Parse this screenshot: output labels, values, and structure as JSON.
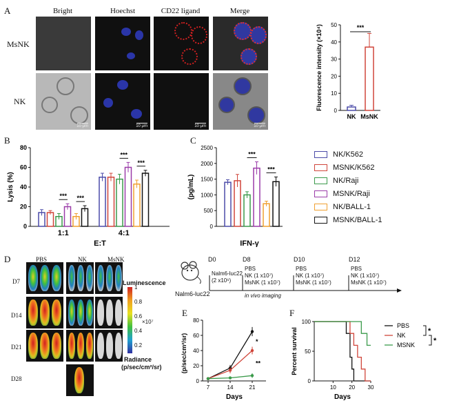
{
  "panels": {
    "a": "A",
    "b": "B",
    "c": "C",
    "d": "D",
    "e": "E",
    "f": "F"
  },
  "panel_a": {
    "columns": [
      "Bright",
      "Hoechst",
      "CD22 ligand",
      "Merge"
    ],
    "rows": [
      "MsNK",
      "NK"
    ],
    "scale_bar": "10 μm"
  },
  "chart_data": [
    {
      "id": "a_bar",
      "type": "bar",
      "categories": [
        "NK",
        "MsNK"
      ],
      "values": [
        2,
        37
      ],
      "errors": [
        1,
        8
      ],
      "colors": [
        "#4a4aa8",
        "#d0453a"
      ],
      "ylabel": "Fluorescence intensity (×10⁴)",
      "ylim": [
        0,
        50
      ],
      "yticks": [
        0,
        10,
        20,
        30,
        40,
        50
      ],
      "significance": "***"
    },
    {
      "id": "b_bar",
      "type": "bar",
      "categories": [
        "1:1",
        "4:1"
      ],
      "xlabel": "E:T",
      "ylabel": "Lysis (%)",
      "ylim": [
        0,
        80
      ],
      "yticks": [
        0,
        20,
        40,
        60,
        80
      ],
      "series": [
        {
          "name": "NK/K562",
          "values": [
            14,
            50
          ],
          "errors": [
            3,
            4
          ]
        },
        {
          "name": "MSNK/K562",
          "values": [
            14,
            50
          ],
          "errors": [
            2,
            4
          ]
        },
        {
          "name": "NK/Raji",
          "values": [
            10,
            48
          ],
          "errors": [
            3,
            5
          ]
        },
        {
          "name": "MSNK/Raji",
          "values": [
            20,
            60
          ],
          "errors": [
            3,
            5
          ]
        },
        {
          "name": "NK/BALL-1",
          "values": [
            10,
            43
          ],
          "errors": [
            3,
            4
          ]
        },
        {
          "name": "MSNK/BALL-1",
          "values": [
            18,
            54
          ],
          "errors": [
            3,
            3
          ]
        }
      ],
      "significance": [
        "***",
        "***",
        "***",
        "***"
      ]
    },
    {
      "id": "c_bar",
      "type": "bar",
      "categories": [
        "IFN-γ"
      ],
      "ylabel": "(pg/mL)",
      "ylim": [
        0,
        2500
      ],
      "yticks": [
        0,
        500,
        1000,
        1500,
        2000,
        2500
      ],
      "series": [
        {
          "name": "NK/K562",
          "values": [
            1400
          ],
          "errors": [
            80
          ]
        },
        {
          "name": "MSNK/K562",
          "values": [
            1450
          ],
          "errors": [
            200
          ]
        },
        {
          "name": "NK/Raji",
          "values": [
            1000
          ],
          "errors": [
            100
          ]
        },
        {
          "name": "MSNK/Raji",
          "values": [
            1850
          ],
          "errors": [
            200
          ]
        },
        {
          "name": "NK/BALL-1",
          "values": [
            720
          ],
          "errors": [
            80
          ]
        },
        {
          "name": "MSNK/BALL-1",
          "values": [
            1420
          ],
          "errors": [
            150
          ]
        }
      ],
      "significance": [
        "***",
        "***"
      ]
    },
    {
      "id": "e_line",
      "type": "line",
      "x": [
        7,
        14,
        21
      ],
      "xlabel": "Days",
      "ylabel": "(p/sec/cm²/sr)",
      "ylim": [
        0,
        80
      ],
      "yticks": [
        0,
        20,
        40,
        60,
        80
      ],
      "series": [
        {
          "name": "PBS",
          "values": [
            3,
            17,
            65
          ],
          "errors": [
            1,
            4,
            6
          ],
          "color": "#111111"
        },
        {
          "name": "NK",
          "values": [
            3,
            14,
            40
          ],
          "errors": [
            1,
            4,
            5
          ],
          "color": "#d0453a"
        },
        {
          "name": "MsNK",
          "values": [
            3,
            4,
            7
          ],
          "errors": [
            1,
            1,
            3
          ],
          "color": "#3a9a4a"
        }
      ],
      "annotations": [
        "*",
        "**"
      ]
    },
    {
      "id": "f_line",
      "type": "line",
      "xlabel": "Days",
      "ylabel": "Percent survival",
      "xlim": [
        0,
        30
      ],
      "xticks": [
        10,
        20,
        30
      ],
      "ylim": [
        0,
        100
      ],
      "yticks": [
        0,
        50,
        100
      ],
      "series": [
        {
          "name": "PBS",
          "color": "#111111",
          "steps": [
            [
              0,
              100
            ],
            [
              17,
              100
            ],
            [
              17,
              80
            ],
            [
              19,
              80
            ],
            [
              19,
              40
            ],
            [
              20,
              40
            ],
            [
              20,
              20
            ],
            [
              21,
              20
            ],
            [
              21,
              0
            ],
            [
              30,
              0
            ]
          ]
        },
        {
          "name": "NK",
          "color": "#d0453a",
          "steps": [
            [
              0,
              100
            ],
            [
              19,
              100
            ],
            [
              19,
              80
            ],
            [
              21,
              80
            ],
            [
              21,
              60
            ],
            [
              23,
              60
            ],
            [
              23,
              40
            ],
            [
              25,
              40
            ],
            [
              25,
              20
            ],
            [
              27,
              20
            ],
            [
              27,
              0
            ],
            [
              30,
              0
            ]
          ]
        },
        {
          "name": "MSNK",
          "color": "#3a9a4a",
          "steps": [
            [
              0,
              100
            ],
            [
              25,
              100
            ],
            [
              25,
              80
            ],
            [
              28,
              80
            ],
            [
              28,
              60
            ],
            [
              30,
              60
            ]
          ]
        }
      ],
      "significance": [
        "*",
        "*"
      ]
    }
  ],
  "legend_bc": {
    "items": [
      {
        "name": "NK/K562",
        "color": "#4a4aa8"
      },
      {
        "name": "MSNK/K562",
        "color": "#d0453a"
      },
      {
        "name": "NK/Raji",
        "color": "#3a9a4a"
      },
      {
        "name": "MSNK/Raji",
        "color": "#9a3aa8"
      },
      {
        "name": "NK/BALL-1",
        "color": "#f0a030"
      },
      {
        "name": "MSNK/BALL-1",
        "color": "#111111"
      }
    ]
  },
  "panel_d": {
    "columns": [
      "PBS",
      "NK",
      "MsNK"
    ],
    "rows": [
      "D7",
      "D14",
      "D21",
      "D28"
    ],
    "colorbar": {
      "title": "Luminescence",
      "ticks": [
        "1",
        "0.8",
        "0.6",
        "0.4",
        "0.2"
      ],
      "unit": "×10⁷",
      "subtitle": "Radiance",
      "subtitle2": "(p/sec/cm²/sr)"
    },
    "timeline": {
      "model": "Nalm6-luc22",
      "days": [
        "D0",
        "D8",
        "D10",
        "D12"
      ],
      "d0_text": [
        "Nalm6-luc22",
        "(2 x10⁶)"
      ],
      "d8_text": [
        "PBS",
        "NK (1 x10⁷)",
        "MsNK (1 x10⁷)"
      ],
      "d10_text": [
        "PBS",
        "NK (1 x10⁷)",
        "MsNK (1 x10⁷)"
      ],
      "d12_text": [
        "PBS",
        "NK (1 x10⁷)",
        "MsNK (1 x10⁷)"
      ],
      "imaging": "in vivo imaging"
    }
  }
}
